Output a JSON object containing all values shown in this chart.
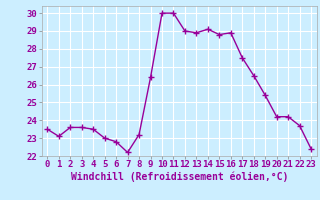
{
  "x": [
    0,
    1,
    2,
    3,
    4,
    5,
    6,
    7,
    8,
    9,
    10,
    11,
    12,
    13,
    14,
    15,
    16,
    17,
    18,
    19,
    20,
    21,
    22,
    23
  ],
  "y": [
    23.5,
    23.1,
    23.6,
    23.6,
    23.5,
    23.0,
    22.8,
    22.2,
    23.2,
    26.4,
    30.0,
    30.0,
    29.0,
    28.9,
    29.1,
    28.8,
    28.9,
    27.5,
    26.5,
    25.4,
    24.2,
    24.2,
    23.7,
    22.4
  ],
  "line_color": "#990099",
  "marker": "+",
  "marker_size": 4,
  "marker_color": "#990099",
  "background_color": "#cceeff",
  "grid_color": "#ffffff",
  "xlabel": "Windchill (Refroidissement éolien,°C)",
  "xlim": [
    -0.5,
    23.5
  ],
  "ylim": [
    22,
    30.4
  ],
  "xticks": [
    0,
    1,
    2,
    3,
    4,
    5,
    6,
    7,
    8,
    9,
    10,
    11,
    12,
    13,
    14,
    15,
    16,
    17,
    18,
    19,
    20,
    21,
    22,
    23
  ],
  "yticks": [
    22,
    23,
    24,
    25,
    26,
    27,
    28,
    29,
    30
  ],
  "xlabel_fontsize": 7,
  "tick_fontsize": 6.5,
  "line_width": 1.0
}
